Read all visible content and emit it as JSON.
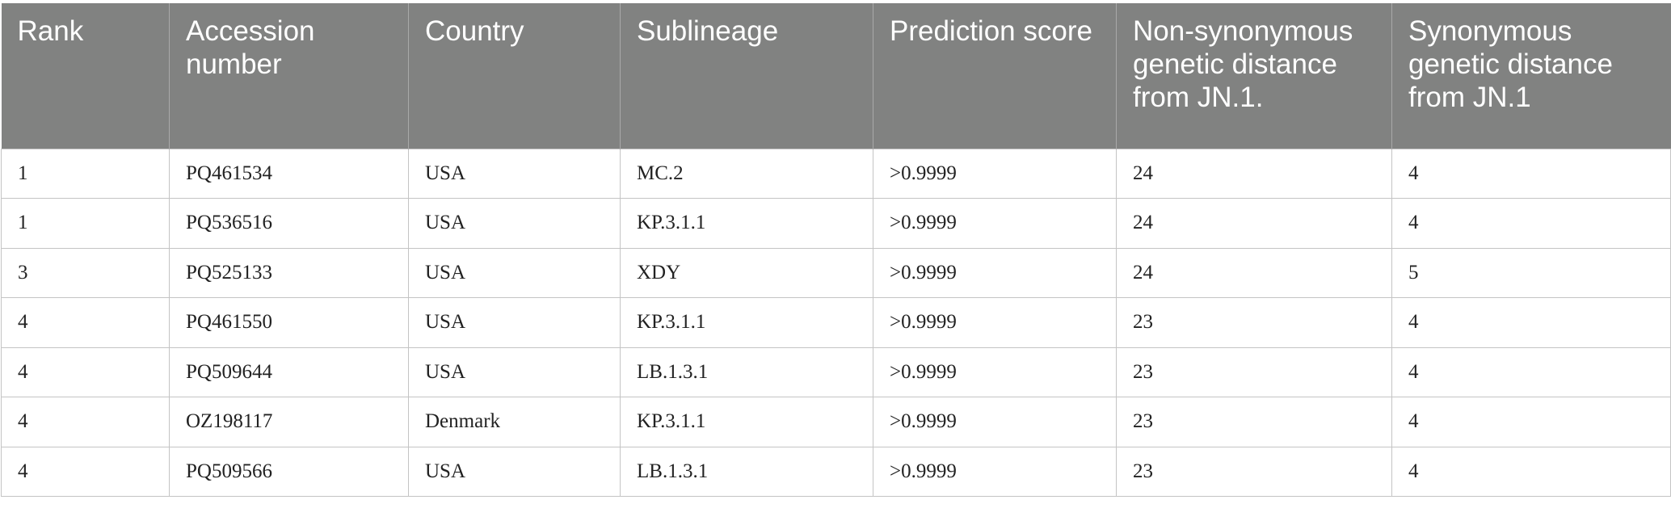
{
  "table": {
    "header": [
      "Rank",
      "Accession number",
      "Country",
      "Sublineage",
      "Prediction score",
      "Non-synonymous genetic distance from JN.1.",
      "Synonymous genetic distance from JN.1"
    ],
    "rows": [
      [
        1,
        "PQ461534",
        "USA",
        "MC.2",
        ">0.9999",
        24,
        4
      ],
      [
        1,
        "PQ536516",
        "USA",
        "KP.3.1.1",
        ">0.9999",
        24,
        4
      ],
      [
        3,
        "PQ525133",
        "USA",
        "XDY",
        ">0.9999",
        24,
        5
      ],
      [
        4,
        "PQ461550",
        "USA",
        "KP.3.1.1",
        ">0.9999",
        23,
        4
      ],
      [
        4,
        "PQ509644",
        "USA",
        "LB.1.3.1",
        ">0.9999",
        23,
        4
      ],
      [
        4,
        "OZ198117",
        "Denmark",
        "KP.3.1.1",
        ">0.9999",
        23,
        4
      ],
      [
        4,
        "PQ509566",
        "USA",
        "LB.1.3.1",
        ">0.9999",
        23,
        4
      ]
    ]
  }
}
